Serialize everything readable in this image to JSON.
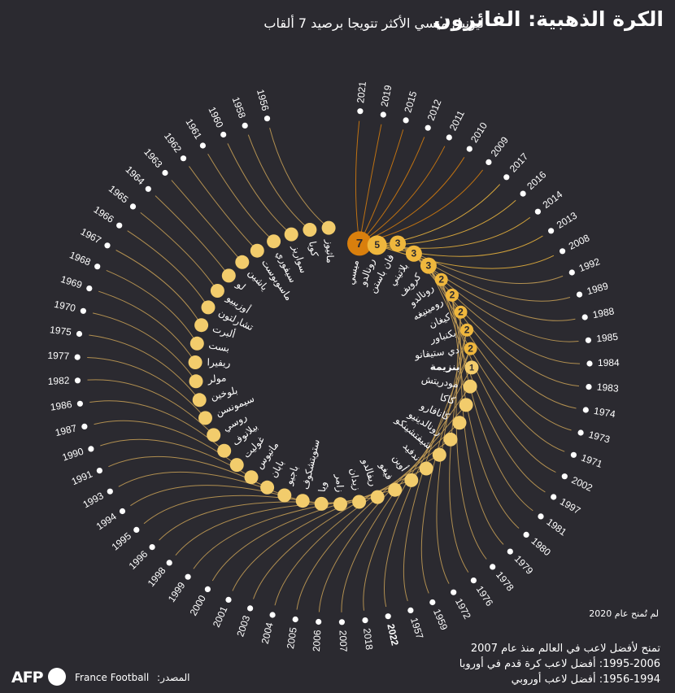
{
  "title": "الكرة الذهبية: الفائزون",
  "subtitle": "ليونيل ميسي الأكثر تتويجا برصيد 7 ألقاب",
  "footnote": "لم تُمنح عام 2020",
  "legend": [
    "تمنح لأفضل لاعب في العالم منذ عام 2007",
    "1995-2006: أفضل لاعب كرة قدم في أوروبا",
    "1956-1994: أفضل لاعب أوروبي"
  ],
  "source": {
    "label": "المصدر:",
    "name": "France Football"
  },
  "logo": "AFP",
  "colors": {
    "background": "#2b2a30",
    "one_win": "#f2cc6c",
    "multi_win": "#efb73d",
    "top": "#d97f0d",
    "line": "#c9a156"
  },
  "highlight_year": "2022",
  "players": [
    {
      "name": "ميسي",
      "wins": 7,
      "years": [
        "2021",
        "2019",
        "2015",
        "2012",
        "2011",
        "2010",
        "2009"
      ]
    },
    {
      "name": "رونالدو",
      "wins": 5,
      "years": [
        "2017",
        "2016",
        "2014",
        "2013",
        "2008"
      ]
    },
    {
      "name": "فان باستن",
      "wins": 3,
      "years": [
        "1992",
        "1989",
        "1988"
      ]
    },
    {
      "name": "بلاتيني",
      "wins": 3,
      "years": [
        "1985",
        "1984",
        "1983"
      ]
    },
    {
      "name": "كرويف",
      "wins": 3,
      "years": [
        "1974",
        "1973",
        "1971"
      ]
    },
    {
      "name": "رونالدو",
      "wins": 2,
      "years": [
        "2002",
        "1997"
      ]
    },
    {
      "name": "رومينيغه",
      "wins": 2,
      "years": [
        "1981",
        "1980"
      ]
    },
    {
      "name": "كيغان",
      "wins": 2,
      "years": [
        "1979",
        "1978"
      ]
    },
    {
      "name": "بكنباور",
      "wins": 2,
      "years": [
        "1976",
        "1972"
      ]
    },
    {
      "name": "دي ستيفانو",
      "wins": 2,
      "years": [
        "1959",
        "1957"
      ]
    },
    {
      "name": "بنزيمة",
      "wins": 1,
      "years": [
        "2022"
      ]
    },
    {
      "name": "مودريتش",
      "wins": 1,
      "years": [
        "2018"
      ]
    },
    {
      "name": "كاكا",
      "wins": 1,
      "years": [
        "2007"
      ]
    },
    {
      "name": "كانافارو",
      "wins": 1,
      "years": [
        "2006"
      ]
    },
    {
      "name": "رونالدينيو",
      "wins": 1,
      "years": [
        "2005"
      ]
    },
    {
      "name": "شيفتشينكو",
      "wins": 1,
      "years": [
        "2004"
      ]
    },
    {
      "name": "ندفيد",
      "wins": 1,
      "years": [
        "2003"
      ]
    },
    {
      "name": "أوين",
      "wins": 1,
      "years": [
        "2001"
      ]
    },
    {
      "name": "فيغو",
      "wins": 1,
      "years": [
        "2000"
      ]
    },
    {
      "name": "ريفالدو",
      "wins": 1,
      "years": [
        "1999"
      ]
    },
    {
      "name": "زيدان",
      "wins": 1,
      "years": [
        "1998"
      ]
    },
    {
      "name": "زامر",
      "wins": 1,
      "years": [
        "1996"
      ]
    },
    {
      "name": "ويا",
      "wins": 1,
      "years": [
        "1995"
      ]
    },
    {
      "name": "ستويتشكوف",
      "wins": 1,
      "years": [
        "1994"
      ]
    },
    {
      "name": "باجيو",
      "wins": 1,
      "years": [
        "1993"
      ]
    },
    {
      "name": "بابان",
      "wins": 1,
      "years": [
        "1991"
      ]
    },
    {
      "name": "ماتيوس",
      "wins": 1,
      "years": [
        "1990"
      ]
    },
    {
      "name": "غوليت",
      "wins": 1,
      "years": [
        "1987"
      ]
    },
    {
      "name": "بيلانوف",
      "wins": 1,
      "years": [
        "1986"
      ]
    },
    {
      "name": "روسي",
      "wins": 1,
      "years": [
        "1982"
      ]
    },
    {
      "name": "سيمونسن",
      "wins": 1,
      "years": [
        "1977"
      ]
    },
    {
      "name": "بلوخين",
      "wins": 1,
      "years": [
        "1975"
      ]
    },
    {
      "name": "مولر",
      "wins": 1,
      "years": [
        "1970"
      ]
    },
    {
      "name": "ريفيرا",
      "wins": 1,
      "years": [
        "1969"
      ]
    },
    {
      "name": "بست",
      "wins": 1,
      "years": [
        "1968"
      ]
    },
    {
      "name": "ألبرت",
      "wins": 1,
      "years": [
        "1967"
      ]
    },
    {
      "name": "تشارلتون",
      "wins": 1,
      "years": [
        "1966"
      ]
    },
    {
      "name": "أوزيبيو",
      "wins": 1,
      "years": [
        "1965"
      ]
    },
    {
      "name": "لو",
      "wins": 1,
      "years": [
        "1964"
      ]
    },
    {
      "name": "ياشين",
      "wins": 1,
      "years": [
        "1963"
      ]
    },
    {
      "name": "ماسوبوست",
      "wins": 1,
      "years": [
        "1962"
      ]
    },
    {
      "name": "سيفوري",
      "wins": 1,
      "years": [
        "1961"
      ]
    },
    {
      "name": "سواريز",
      "wins": 1,
      "years": [
        "1960"
      ]
    },
    {
      "name": "كوبا",
      "wins": 1,
      "years": [
        "1958"
      ]
    },
    {
      "name": "ماثيوز",
      "wins": 1,
      "years": [
        "1956"
      ]
    }
  ]
}
